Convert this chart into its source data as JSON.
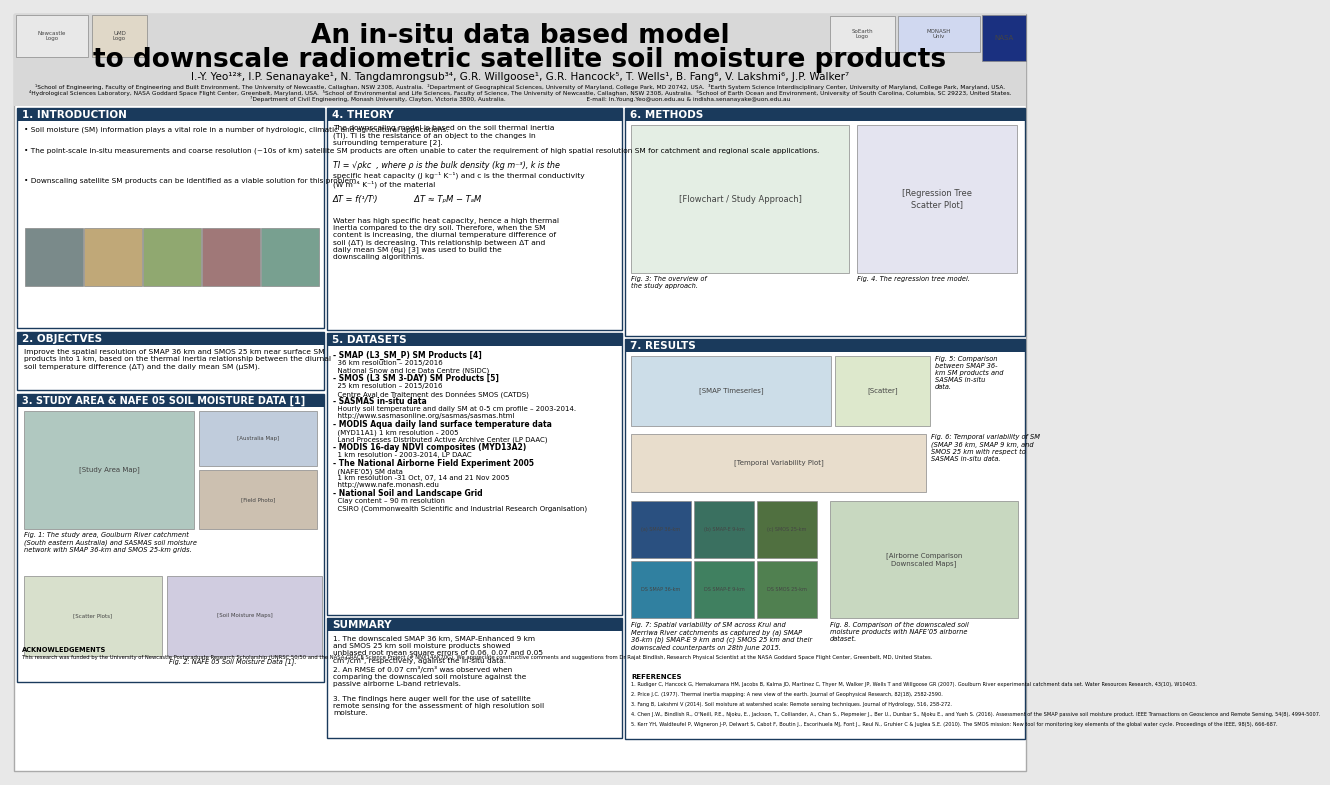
{
  "background_color": "#e8e8e8",
  "header_bg": "#d8d8d8",
  "section_header_color": "#1a3a5c",
  "section_header_text_color": "#ffffff",
  "section_border_color": "#1a3a5c",
  "header_title_line1": "An in-situ data based model",
  "header_title_line2": "to downscale radiometric satellite soil moisture products",
  "header_authors": "I.-Y. Yeo¹²*, I.P. Senanayake¹, N. Tangdamrongsub³⁴, G.R. Willgoose¹, G.R. Hancock⁵, T. Wells¹, B. Fang⁶, V. Lakshmi⁶, J.P. Walker⁷",
  "affil1": "¹School of Engineering, Faculty of Engineering and Built Environment, The University of Newcastle, Callaghan, NSW 2308, Australia.  ²Department of Geographical Sciences, University of Maryland, College Park, MD 20742, USA.  ³Earth System Science Interdisciplinary Center, University of Maryland, College Park, Maryland, USA.",
  "affil2": "⁴Hydrological Sciences Laboratory, NASA Goddard Space Flight Center, Greenbelt, Maryland, USA.  ⁵School of Environmental and Life Sciences, Faculty of Science, The University of Newcastle, Callaghan, NSW 2308, Australia.  ⁶School of Earth Ocean and Environment, University of South Carolina, Columbia, SC 29223, United States.",
  "affil3": "⁷Department of Civil Engineering, Monash University, Clayton, Victoria 3800, Australia.                                           E-mail: In.Young.Yeo@uon.edu.au & indisha.senanayake@uon.edu.au",
  "sec1_title": "1. INTRODUCTION",
  "sec1_bullets": [
    "Soil moisture (SM) information plays a vital role in a number of hydrologic, climatic and agricultural applications.",
    "The point-scale in-situ measurements and coarse resolution (~10s of km) satellite SM products are often unable to cater the requirement of high spatial resolution SM for catchment and regional scale applications.",
    "Downscaling satellite SM products can be identified as a viable solution for this problem."
  ],
  "sec2_title": "2. OBJECTVES",
  "sec2_text": "Improve the spatial resolution of SMAP 36 km and SMOS 25 km near surface SM\nproducts into 1 km, based on the thermal inertia relationship between the diurnal\nsoil temperature difference (ΔT) and the daily mean SM (μSM).",
  "sec3_title": "3. STUDY AREA & NAFE 05 SOIL MOISTURE DATA [1]",
  "sec3_fig1_caption": "Fig. 1: The study area, Goulburn River catchment\n(South eastern Australia) and SASMAS soil moisture\nnetwork with SMAP 36-km and SMOS 25-km grids.",
  "sec3_fig2_caption": "Fig. 2: NAFE 05 Soil Moisture Data [1].",
  "sec4_title": "4. THEORY",
  "sec4_text1": "The downscaling model is based on the soil thermal inertia\n(TI). TI is the resistance of an object to the changes in\nsurrounding temperature [2].",
  "sec4_eq1": "TI = √ρkc  , where ρ is the bulk density (kg m⁻³), k is the",
  "sec4_eq1b": "specific heat capacity (J kg⁻¹ K⁻¹) and c is the thermal conductivity",
  "sec4_eq1c": "(W m⁻¹ K⁻¹) of the material",
  "sec4_eq2": "ΔT = f(¹/Tᴵ)              ΔT ≈ TₚM − TₐM",
  "sec4_text2": "Water has high specific heat capacity, hence a high thermal\ninertia compared to the dry soil. Therefore, when the SM\ncontent is increasing, the diurnal temperature difference of\nsoil (ΔT) is decreasing. This relationship between ΔT and\ndaily mean SM (θμ) [3] was used to build the\ndownscaling algorithms.",
  "sec5_title": "5. DATASETS",
  "sec5_items": [
    {
      "text": "- SMAP (L3_SM_P) SM Products [4]",
      "bold": true
    },
    {
      "text": "  36 km resolution – 2015/2016",
      "bold": false
    },
    {
      "text": "  National Snow and Ice Data Centre (NSIDC)",
      "bold": false
    },
    {
      "text": "- SMOS (L3 SM 3-DAY) SM Products [5]",
      "bold": true
    },
    {
      "text": "  25 km resolution – 2015/2016",
      "bold": false
    },
    {
      "text": "  Centre Aval de Traitement des Données SMOS (CATDS)",
      "bold": false
    },
    {
      "text": "- SASMAS in-situ data",
      "bold": true
    },
    {
      "text": "  Hourly soil temperature and daily SM at 0-5 cm profile – 2003-2014.",
      "bold": false
    },
    {
      "text": "  http://www.sasmasonline.org/sasmas/sasmas.html",
      "bold": false
    },
    {
      "text": "- MODIS Aqua daily land surface temperature data",
      "bold": true
    },
    {
      "text": "  (MYD11A1) 1 km resolution - 2005",
      "bold": false
    },
    {
      "text": "  Land Processes Distributed Active Archive Center (LP DAAC)",
      "bold": false
    },
    {
      "text": "- MODIS 16-day NDVI composites (MYD13A2)",
      "bold": true
    },
    {
      "text": "  1 km resolution - 2003-2014, LP DAAC",
      "bold": false
    },
    {
      "text": "- The National Airborne Field Experiment 2005",
      "bold": true
    },
    {
      "text": "  (NAFE’05) SM data",
      "bold": false
    },
    {
      "text": "  1 km resolution -31 Oct, 07, 14 and 21 Nov 2005",
      "bold": false
    },
    {
      "text": "  http://www.nafe.monash.edu",
      "bold": false
    },
    {
      "text": "- National Soil and Landscape Grid",
      "bold": true
    },
    {
      "text": "  Clay content – 90 m resolution",
      "bold": false
    },
    {
      "text": "  CSIRO (Commonwealth Scientific and Industrial Research Organisation)",
      "bold": false
    }
  ],
  "sec6_title": "6. METHODS",
  "sec6_fig3_caption": "Fig. 3: The overview of\nthe study approach.",
  "sec6_fig4_caption": "Fig. 4. The regression tree model.",
  "sec7_title": "7. RESULTS",
  "sec7_fig5_caption": "Fig. 5: Comparison\nbetween SMAP 36-\nkm SM products and\nSASMAS in-situ\ndata.",
  "sec7_fig6_caption": "Fig. 6: Temporal variability of SM\n(SMAP 36 km, SMAP 9 km, and\nSMOS 25 km with respect to\nSASMAS in-situ data.",
  "sec7_fig7_caption": "Fig. 7: Spatial variability of SM across Krui and\nMerriwa River catchments as captured by (a) SMAP\n36-km (b) SMAP-E 9 km and (c) SMOS 25 km and their\ndownscaled counterparts on 28th June 2015.",
  "sec7_fig8_caption": "Fig. 8. Comparison of the downscaled soil\nmoisture products with NAFE’05 airborne\ndataset.",
  "summary_title": "SUMMARY",
  "summary_items": [
    "1. The downscaled SMAP 36 km, SMAP-Enhanced 9 km\nand SMOS 25 km soil moisture products showed\nunbiased root mean square errors of 0.06, 0.07 and 0.05\ncm³/cm³, respectively, against the in-situ data.",
    "2. An RMSE of 0.07 cm³/cm³ was observed when\ncomparing the downscaled soil moisture against the\npassive airborne L-band retrievals.",
    "3. The findings here auger well for the use of satellite\nremote sensing for the assessment of high resolution soil\nmoisture."
  ],
  "ack_title": "ACKNOWLEDGEMENTS",
  "ack_text": "This research was funded by the University of Newcastle Postgraduate Research Scholarship (UNRSC 50/50 and the NASA GRACE Science Project (# NNX14AK70G). We appreciate constructive comments and suggestions from Dr Rajat Bindlish, Research Physical Scientist at the NASA Goddard Space Flight Center, Greenbelt, MD, United States.",
  "ref_title": "REFERENCES",
  "ref_items": [
    "1. Rudiger C, Hancock G, Hemakumara HM, Jacobs B, Kalma JD, Martinez C, Thyer M, Walker JP, Wells T and Willgoose GR (2007). Goulburn River experimental catchment data set. Water Resources Research, 43(10), W10403.",
    "2. Price J.C. (1977). Thermal inertia mapping: A new view of the earth. Journal of Geophysical Research, 82(18), 2582-2590.",
    "3. Fang B, Lakshmi V (2014). Soil moisture at watershed scale: Remote sensing techniques. Journal of Hydrology, 516, 258-272.",
    "4. Chen J.W., Bindlish R., O'Neill, P.E., Njoku, E., Jackson, T., Colliander, A., Chan S., Piepmeier J., Ber U., Dunbar S., Njoku E., and Yueh S. (2016). Assessment of the SMAP passive soil moisture product. IEEE Transactions on Geoscience and Remote Sensing, 54(8), 4994-5007.",
    "5. Kerr YH, Waldteufel P, Wigneron J-P, Delwart S, Cabot F, Boutin J., Escorihuela MJ, Font J., Reul N., Gruhier C & Juglea S.E. (2010). The SMOS mission: New tool for monitoring key elements of the global water cycle. Proceedings of the IEEE, 98(5), 666-687."
  ]
}
